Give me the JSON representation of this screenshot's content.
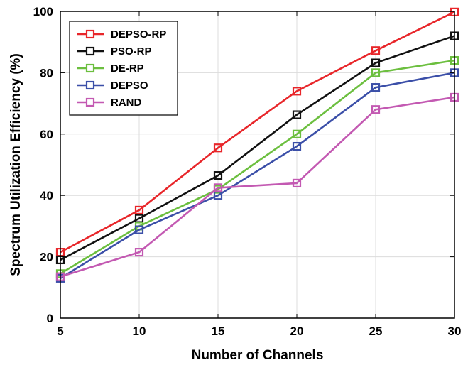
{
  "chart_data": {
    "type": "line",
    "xlabel": "Number of Channels",
    "ylabel": "Spectrum Utilization Efficiency (%)",
    "x": [
      5,
      10,
      15,
      20,
      25,
      30
    ],
    "xlim": [
      5,
      30
    ],
    "ylim": [
      0,
      100
    ],
    "xticks": [
      "5",
      "10",
      "15",
      "20",
      "25",
      "30"
    ],
    "yticks": [
      "0",
      "20",
      "40",
      "60",
      "80",
      "100"
    ],
    "grid": true,
    "legend_position": "top-left",
    "marker": "square",
    "series": [
      {
        "name": "DEPSO-RP",
        "color": "#e8262a",
        "values": [
          21.5,
          35.2,
          55.5,
          74,
          87.2,
          99.8
        ]
      },
      {
        "name": "PSO-RP",
        "color": "#111111",
        "values": [
          19,
          32.5,
          46.5,
          66.3,
          83.2,
          92
        ]
      },
      {
        "name": "DE-RP",
        "color": "#6cbf3f",
        "values": [
          14.5,
          30,
          42,
          60,
          80,
          84
        ]
      },
      {
        "name": "DEPSO",
        "color": "#3b4fa8",
        "values": [
          13,
          28.8,
          40,
          56,
          75.2,
          80
        ]
      },
      {
        "name": "RAND",
        "color": "#c359b2",
        "values": [
          13.5,
          21.5,
          42.5,
          44,
          68,
          72
        ]
      }
    ]
  }
}
